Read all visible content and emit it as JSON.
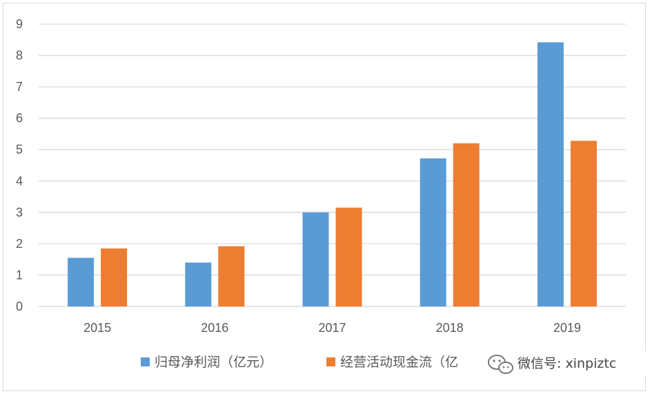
{
  "chart_data": {
    "type": "bar",
    "title": "",
    "xlabel": "",
    "ylabel": "",
    "categories": [
      "2015",
      "2016",
      "2017",
      "2018",
      "2019"
    ],
    "series": [
      {
        "name": "归母净利润（亿元）",
        "color": "#5b9bd5",
        "values": [
          1.55,
          1.4,
          3.0,
          4.72,
          8.42
        ]
      },
      {
        "name": "经营活动现金流（亿元）",
        "color": "#ed7d31",
        "values": [
          1.85,
          1.92,
          3.15,
          5.2,
          5.28
        ]
      }
    ],
    "ylim": [
      0,
      9
    ],
    "yticks": [
      "0",
      "1",
      "2",
      "3",
      "4",
      "5",
      "6",
      "7",
      "8",
      "9"
    ],
    "grid": true,
    "legend_position": "bottom"
  },
  "legend": {
    "item1": "归母净利润（亿元）",
    "item2_visible": "经营活动现金流（亿"
  },
  "watermark": {
    "text": "微信号: xinpiztc",
    "icon": "wechat-icon"
  },
  "colors": {
    "gridline": "#d9d9d9",
    "axis_text": "#595959"
  }
}
